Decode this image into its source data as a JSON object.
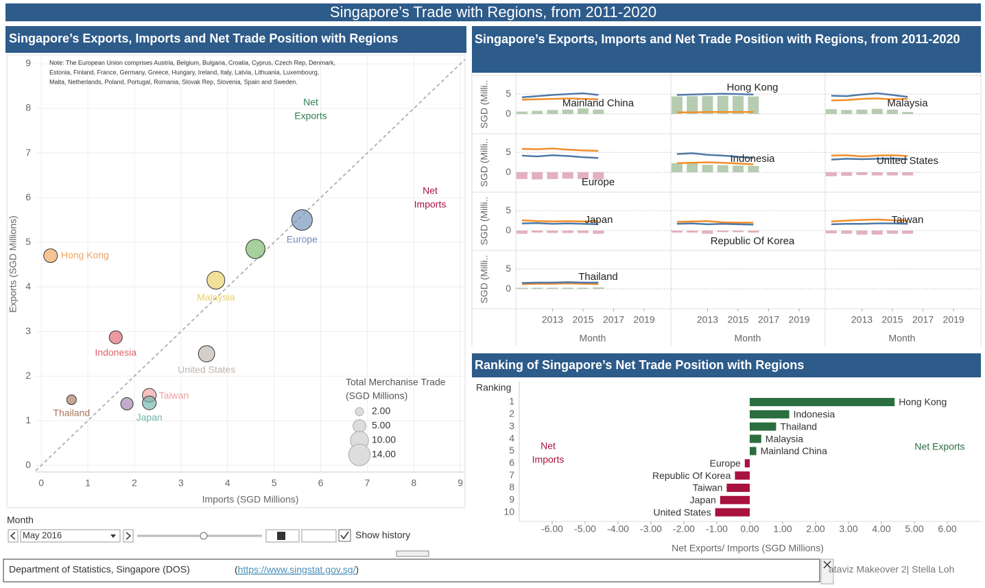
{
  "header": {
    "title": "Singapore’s Trade with Regions, from 2011-2020"
  },
  "chart_data": [
    {
      "type": "scatter",
      "title": "Singapore’s  Exports, Imports and Net Trade Position with Regions",
      "note": [
        "Note: The European Union comprises Austria, Belgium, Bulgaria, Croatia, Cyprus, Czech Rep, Denmark,",
        "Estonia, Finland, France, Germany, Greece, Hungary, Ireland, Italy, Latvia, Lithuania, Luxembourg,",
        "Malta, Netherlands, Poland, Portugal, Romania, Slovak Rep, Slovenia, Spain and Sweden."
      ],
      "x_label": "Imports (SGD Millions)",
      "y_label": "Exports (SGD Millions)",
      "xlim": [
        -0.12,
        9.1
      ],
      "ylim": [
        -0.15,
        9.2
      ],
      "xticks": [
        0,
        1,
        2,
        3,
        4,
        5,
        6,
        7,
        8,
        9
      ],
      "yticks": [
        0,
        1,
        2,
        3,
        4,
        5,
        6,
        7,
        8,
        9
      ],
      "grid": true,
      "diagonal": true,
      "annotations": {
        "net_exports": [
          "Net",
          "Exports"
        ],
        "net_imports": [
          "Net",
          "Imports"
        ]
      },
      "points": [
        {
          "name": "Hong Kong",
          "color": "#f0a35b",
          "x": 0.2,
          "y": 4.7,
          "size": 5.7
        },
        {
          "name": "Malaysia",
          "color": "#e8cf62",
          "x": 3.75,
          "y": 4.15,
          "size": 9.6
        },
        {
          "name": null,
          "color": "#79b86a",
          "x": 4.6,
          "y": 4.85,
          "size": 11
        },
        {
          "name": "Europe",
          "color": "#6f8fb8",
          "x": 5.6,
          "y": 5.5,
          "size": 12.8
        },
        {
          "name": "Indonesia",
          "color": "#e0626b",
          "x": 1.6,
          "y": 2.87,
          "size": 5.1
        },
        {
          "name": "United States",
          "color": "#bdb5ae",
          "x": 3.55,
          "y": 2.5,
          "size": 8
        },
        {
          "name": "Thailand",
          "color": "#a8775c",
          "x": 0.65,
          "y": 1.47,
          "size": 2.8
        },
        {
          "name": "Taiwan",
          "color": "#f29ea0",
          "x": 2.32,
          "y": 1.57,
          "size": 5.7
        },
        {
          "name": "Japan",
          "color": "#6fb3ae",
          "x": 2.32,
          "y": 1.4,
          "size": 5.7
        },
        {
          "name": null,
          "color": "#a27fb0",
          "x": 1.84,
          "y": 1.38,
          "size": 4.6
        }
      ],
      "size_legend": {
        "title": [
          "Total Merchanise Trade",
          "(SGD Millions)"
        ],
        "values": [
          2,
          5,
          10,
          14
        ],
        "value_labels": [
          "2.00",
          "5.00",
          "10.00",
          "14.00"
        ]
      }
    },
    {
      "type": "line",
      "title": "Singapore’s  Exports, Imports and Net Trade Position with Regions, from 2011-2020",
      "y_label": "SGD (Milli..",
      "x_label": "Month",
      "x": [
        2011,
        2012,
        2013,
        2014,
        2015,
        2016
      ],
      "xlim": [
        2010.6,
        2020.7
      ],
      "xticks": [
        2013,
        2015,
        2017,
        2019
      ],
      "ylim": [
        -5,
        9.7
      ],
      "yticks": [
        0,
        5
      ],
      "colors": {
        "exports": "#4e79a7",
        "imports": "#f28e2b",
        "net_positive": "#9dbb96",
        "net_negative": "#d995a7"
      },
      "panels": [
        {
          "name": "Mainland China",
          "exports": [
            4.2,
            4.5,
            4.8,
            5.0,
            5.2,
            4.8
          ],
          "imports": [
            3.6,
            3.7,
            3.8,
            3.9,
            3.8,
            3.7
          ],
          "net": [
            0.6,
            0.8,
            1.0,
            1.1,
            1.4,
            1.1
          ]
        },
        {
          "name": "Hong Kong",
          "exports": [
            4.8,
            4.9,
            5.0,
            5.1,
            5.0,
            4.9
          ],
          "imports": [
            0.4,
            0.4,
            0.5,
            0.5,
            0.5,
            0.5
          ],
          "net": [
            4.4,
            4.5,
            4.5,
            4.6,
            4.5,
            4.4
          ]
        },
        {
          "name": "Malaysia",
          "exports": [
            4.6,
            4.5,
            4.9,
            5.2,
            4.8,
            4.3
          ],
          "imports": [
            3.4,
            3.5,
            3.8,
            3.9,
            3.7,
            3.8
          ],
          "net": [
            1.2,
            1.0,
            1.1,
            1.3,
            1.1,
            0.5
          ]
        },
        {
          "name": "Europe",
          "exports": [
            4.2,
            4.0,
            4.3,
            4.1,
            3.8,
            3.6
          ],
          "imports": [
            5.9,
            5.8,
            6.0,
            5.7,
            5.5,
            5.4
          ],
          "net": [
            -1.7,
            -1.8,
            -1.7,
            -1.6,
            -1.7,
            -1.8
          ]
        },
        {
          "name": "Indonesia",
          "exports": [
            4.6,
            4.8,
            4.4,
            4.2,
            3.9,
            3.6
          ],
          "imports": [
            2.3,
            2.4,
            2.5,
            2.4,
            2.2,
            2.0
          ],
          "net": [
            2.3,
            2.4,
            1.9,
            1.8,
            1.7,
            1.6
          ]
        },
        {
          "name": "United States",
          "exports": [
            3.2,
            3.4,
            3.3,
            3.4,
            3.5,
            3.3
          ],
          "imports": [
            4.2,
            4.3,
            4.0,
            4.2,
            4.3,
            4.1
          ],
          "net": [
            -1.0,
            -0.9,
            -0.7,
            -0.8,
            -0.8,
            -0.8
          ]
        },
        {
          "name": "Japan",
          "exports": [
            1.8,
            1.9,
            1.7,
            1.8,
            1.7,
            1.6
          ],
          "imports": [
            2.6,
            2.4,
            2.3,
            2.4,
            2.3,
            2.4
          ],
          "net": [
            -0.8,
            -0.5,
            -0.6,
            -0.6,
            -0.6,
            -0.8
          ]
        },
        {
          "name": "Republic Of Korea",
          "exports": [
            1.7,
            1.8,
            1.6,
            1.7,
            1.6,
            1.5
          ],
          "imports": [
            2.2,
            2.3,
            2.4,
            2.1,
            2.0,
            2.0
          ],
          "net": [
            -0.5,
            -0.5,
            -0.8,
            -0.4,
            -0.4,
            -0.5
          ]
        },
        {
          "name": "Taiwan",
          "exports": [
            1.6,
            1.7,
            1.7,
            1.8,
            1.8,
            1.7
          ],
          "imports": [
            2.3,
            2.5,
            2.7,
            2.8,
            2.6,
            2.5
          ],
          "net": [
            -0.7,
            -0.8,
            -1.0,
            -1.0,
            -0.8,
            -0.8
          ]
        },
        {
          "name": "Thailand",
          "exports": [
            1.5,
            1.6,
            1.6,
            1.7,
            1.6,
            1.6
          ],
          "imports": [
            1.2,
            1.3,
            1.3,
            1.4,
            1.3,
            1.2
          ],
          "net": [
            0.3,
            0.3,
            0.3,
            0.3,
            0.3,
            0.4
          ]
        }
      ]
    },
    {
      "type": "bar",
      "orientation": "horizontal",
      "title": "Ranking of Singapore’s Net Trade Position with Regions",
      "ranking_label": "Ranking",
      "rankings": [
        1,
        2,
        3,
        4,
        5,
        6,
        7,
        8,
        9,
        10
      ],
      "categories": [
        "Hong Kong",
        "Indonesia",
        "Thailand",
        "Malaysia",
        "Mainland China",
        "Europe",
        "Republic Of Korea",
        "Taiwan",
        "Japan",
        "United States"
      ],
      "values": [
        4.4,
        1.2,
        0.8,
        0.35,
        0.2,
        -0.15,
        -0.45,
        -0.7,
        -0.9,
        -1.05
      ],
      "xlim": [
        -7,
        7
      ],
      "xticks": [
        {
          "value": -6,
          "label": "-6.00"
        },
        {
          "value": -5,
          "label": "-5.00"
        },
        {
          "value": -4,
          "label": "-4.00"
        },
        {
          "value": -3,
          "label": "-3.00"
        },
        {
          "value": -2,
          "label": "-2.00"
        },
        {
          "value": -1,
          "label": "-1.00"
        },
        {
          "value": 0,
          "label": "0.00"
        },
        {
          "value": 1,
          "label": "1.00"
        },
        {
          "value": 2,
          "label": "2.00"
        },
        {
          "value": 3,
          "label": "3.00"
        },
        {
          "value": 4,
          "label": "4.00"
        },
        {
          "value": 5,
          "label": "5.00"
        },
        {
          "value": 6,
          "label": "6.00"
        }
      ],
      "x_label": "Net Exports/ Imports (SGD Millions)",
      "positive_color": "#2b6e3f",
      "negative_color": "#a8123e",
      "annotations": {
        "net_imports": [
          "Net",
          "Imports"
        ],
        "net_exports": "Net Exports"
      }
    }
  ],
  "controls": {
    "filter_label": "Month",
    "selected": "May 2016",
    "show_history": "Show history"
  },
  "footer": {
    "source": "Department of Statistics, Singapore (DOS)",
    "link_open": "(",
    "url": "https://www.singstat.gov.sg/",
    "link_close": ")",
    "credit": "ataviz Makeover 2| Stella Loh"
  }
}
